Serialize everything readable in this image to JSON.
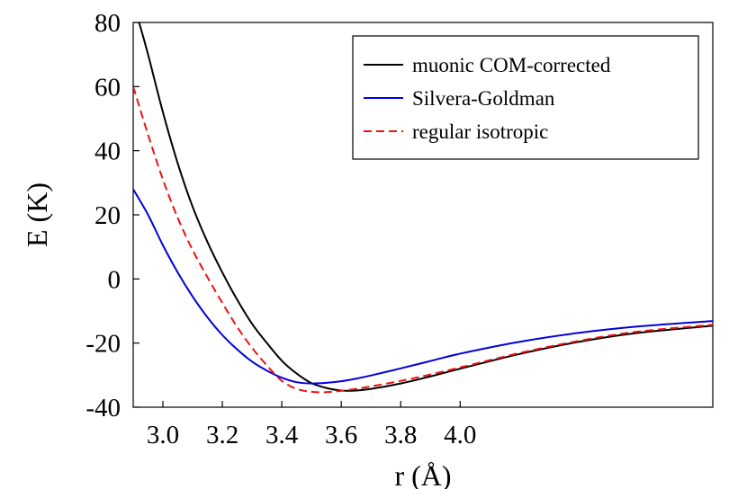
{
  "chart_data": {
    "type": "line",
    "title": "",
    "xlabel": "r (Å)",
    "ylabel": "E (K)",
    "xlim": [
      2.9,
      4.85
    ],
    "ylim": [
      -40,
      80
    ],
    "x_ticks": [
      3.0,
      3.2,
      3.4,
      3.6,
      3.8,
      4.0
    ],
    "x_tick_labels": [
      "3.0",
      "3.2",
      "3.4",
      "3.6",
      "3.8",
      "4.0"
    ],
    "y_ticks": [
      80,
      60,
      40,
      20,
      0,
      -20,
      -40
    ],
    "y_tick_labels": [
      "80",
      "60",
      "40",
      "20",
      "0",
      "-20",
      "-40"
    ],
    "grid": false,
    "legend_position": "top-right",
    "series": [
      {
        "name": "muonic COM-corrected",
        "color": "#000000",
        "dash": "solid",
        "x": [
          2.92,
          2.95,
          3.0,
          3.05,
          3.1,
          3.15,
          3.2,
          3.25,
          3.3,
          3.35,
          3.4,
          3.45,
          3.5,
          3.55,
          3.6,
          3.65,
          3.7,
          3.8,
          3.9,
          4.0,
          4.2,
          4.4,
          4.6,
          4.85
        ],
        "y": [
          80,
          70,
          52,
          36,
          22.5,
          11.5,
          2,
          -6.5,
          -14,
          -20,
          -25.5,
          -29.5,
          -32.5,
          -34,
          -34.8,
          -34.8,
          -34.3,
          -32.6,
          -30.4,
          -28,
          -23.4,
          -19.6,
          -16.8,
          -14.6
        ]
      },
      {
        "name": "Silvera-Goldman",
        "color": "#0000dd",
        "dash": "solid",
        "x": [
          2.9,
          2.95,
          3.0,
          3.05,
          3.1,
          3.15,
          3.2,
          3.25,
          3.3,
          3.35,
          3.4,
          3.45,
          3.5,
          3.55,
          3.6,
          3.65,
          3.7,
          3.8,
          3.9,
          4.0,
          4.2,
          4.4,
          4.6,
          4.85
        ],
        "y": [
          28,
          20,
          10.5,
          2,
          -5.5,
          -12,
          -17.5,
          -22,
          -25.8,
          -28.6,
          -30.8,
          -32.2,
          -32.6,
          -32.4,
          -31.9,
          -31.1,
          -30.1,
          -27.9,
          -25.6,
          -23.3,
          -19.6,
          -16.8,
          -14.8,
          -13.1
        ]
      },
      {
        "name": "regular isotropic",
        "color": "#ee1111",
        "dash": "dashed",
        "x": [
          2.9,
          2.95,
          3.0,
          3.05,
          3.1,
          3.15,
          3.2,
          3.25,
          3.3,
          3.35,
          3.4,
          3.45,
          3.5,
          3.55,
          3.6,
          3.65,
          3.7,
          3.8,
          3.9,
          4.0,
          4.2,
          4.4,
          4.6,
          4.85
        ],
        "y": [
          60,
          45,
          31,
          19,
          9,
          0.5,
          -7.5,
          -15,
          -21.5,
          -27,
          -31.8,
          -34.3,
          -35.2,
          -35.3,
          -34.9,
          -34.3,
          -33.5,
          -31.8,
          -29.8,
          -27.6,
          -23.1,
          -19.3,
          -16.4,
          -14.3
        ]
      }
    ]
  }
}
